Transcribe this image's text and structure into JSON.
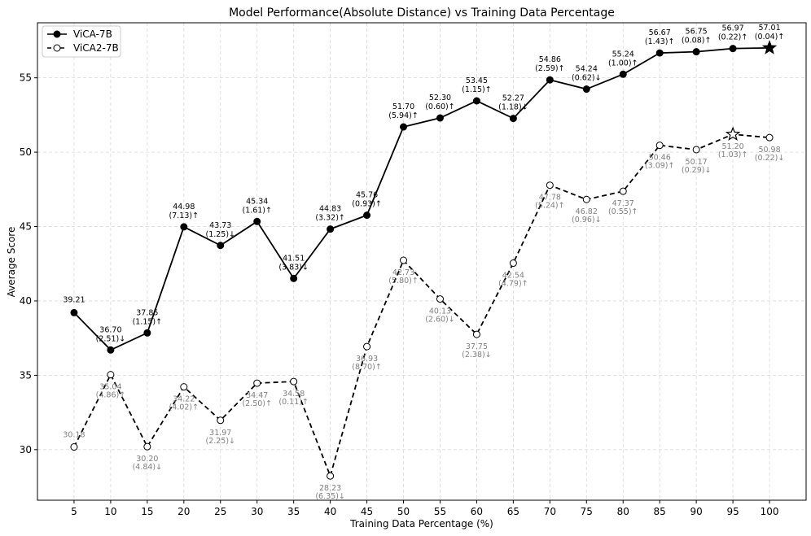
{
  "chart_data": {
    "type": "line",
    "title": "Model Performance(Absolute Distance) vs Training Data Percentage",
    "xlabel": "Training Data Percentage (%)",
    "ylabel": "Average Score",
    "x": [
      5,
      10,
      15,
      20,
      25,
      30,
      35,
      40,
      45,
      50,
      55,
      60,
      65,
      70,
      75,
      80,
      85,
      90,
      95,
      100
    ],
    "xticks": [
      5,
      10,
      15,
      20,
      25,
      30,
      35,
      40,
      45,
      50,
      55,
      60,
      65,
      70,
      75,
      80,
      85,
      90,
      95,
      100
    ],
    "yticks": [
      30,
      35,
      40,
      45,
      50,
      55
    ],
    "xlim": [
      0,
      105
    ],
    "ylim": [
      26.6,
      58.7
    ],
    "grid": true,
    "legend_position": "top-left",
    "series": [
      {
        "name": "ViCA-7B",
        "line_style": "solid",
        "marker": "filled-circle",
        "color": "#000000",
        "label_color": "#000000",
        "best_marker": "star",
        "best_index": 19,
        "values": [
          39.21,
          36.7,
          37.85,
          44.98,
          43.73,
          45.34,
          41.51,
          44.83,
          45.76,
          51.7,
          52.3,
          53.45,
          52.27,
          54.86,
          54.24,
          55.24,
          56.67,
          56.75,
          56.97,
          57.01
        ],
        "value_labels": [
          "39.21",
          "36.70",
          "37.85",
          "44.98",
          "43.73",
          "45.34",
          "41.51",
          "44.83",
          "45.76",
          "51.70",
          "52.30",
          "53.45",
          "52.27",
          "54.86",
          "54.24",
          "55.24",
          "56.67",
          "56.75",
          "56.97",
          "57.01"
        ],
        "change_labels": [
          "",
          "(2.51)↓",
          "(1.15)↑",
          "(7.13)↑",
          "(1.25)↓",
          "(1.61)↑",
          "(3.83)↓",
          "(3.32)↑",
          "(0.93)↑",
          "(5.94)↑",
          "(0.60)↑",
          "(1.15)↑",
          "(1.18)↓",
          "(2.59)↑",
          "(0.62)↓",
          "(1.00)↑",
          "(1.43)↑",
          "(0.08)↑",
          "(0.22)↑",
          "(0.04)↑"
        ]
      },
      {
        "name": "ViCA2-7B",
        "line_style": "dashed",
        "marker": "open-circle",
        "color": "#000000",
        "label_color": "#808080",
        "best_marker": "star",
        "best_index": 18,
        "values": [
          30.18,
          35.04,
          30.2,
          34.22,
          31.97,
          34.47,
          34.58,
          28.23,
          36.93,
          42.73,
          40.13,
          37.75,
          42.54,
          47.78,
          46.82,
          47.37,
          50.46,
          50.17,
          51.2,
          50.98
        ],
        "value_labels": [
          "30.18",
          "35.04",
          "30.20",
          "34.22",
          "31.97",
          "34.47",
          "34.58",
          "28.23",
          "36.93",
          "42.73",
          "40.13",
          "37.75",
          "42.54",
          "47.78",
          "46.82",
          "47.37",
          "50.46",
          "50.17",
          "51.20",
          "50.98"
        ],
        "change_labels": [
          "",
          "(4.86)↑",
          "(4.84)↓",
          "(4.02)↑",
          "(2.25)↓",
          "(2.50)↑",
          "(0.11)↑",
          "(6.35)↓",
          "(8.70)↑",
          "(5.80)↑",
          "(2.60)↓",
          "(2.38)↓",
          "(4.79)↑",
          "(5.24)↑",
          "(0.96)↓",
          "(0.55)↑",
          "(3.09)↑",
          "(0.29)↓",
          "(1.03)↑",
          "(0.22)↓"
        ]
      }
    ]
  }
}
